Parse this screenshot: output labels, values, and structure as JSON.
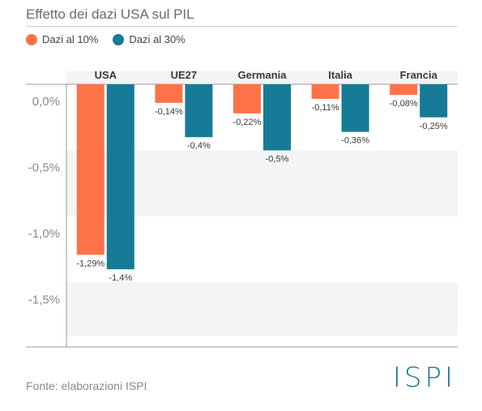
{
  "header": {
    "title": "Effetto dei dazi USA sul PIL"
  },
  "footer": {
    "source": "Fonte: elaborazioni ISPI",
    "logo": "ISPI"
  },
  "chart_data": {
    "type": "bar",
    "title": "Effetto dei dazi USA sul PIL",
    "categories": [
      "USA",
      "UE27",
      "Germania",
      "Italia",
      "Francia"
    ],
    "series": [
      {
        "name": "Dazi al 10%",
        "color": "#ff7249",
        "values": [
          -1.29,
          -0.14,
          -0.22,
          -0.11,
          -0.08
        ],
        "labels": [
          "-1,29%",
          "-0,14%",
          "-0,22%",
          "-0,11%",
          "-0,08%"
        ]
      },
      {
        "name": "Dazi al 30%",
        "color": "#157b96",
        "values": [
          -1.4,
          -0.4,
          -0.5,
          -0.36,
          -0.25
        ],
        "labels": [
          "-1,4%",
          "-0,4%",
          "-0,5%",
          "-0,36%",
          "-0,25%"
        ]
      }
    ],
    "yticks": [
      0,
      -0.5,
      -1.0,
      -1.5
    ],
    "ytick_labels": [
      "0,0%",
      "-0,5%",
      "-1,0%",
      "-1,5%"
    ],
    "ylim": [
      -1.9,
      0.1
    ],
    "legend": "top-left",
    "grid": "alternating bands"
  }
}
